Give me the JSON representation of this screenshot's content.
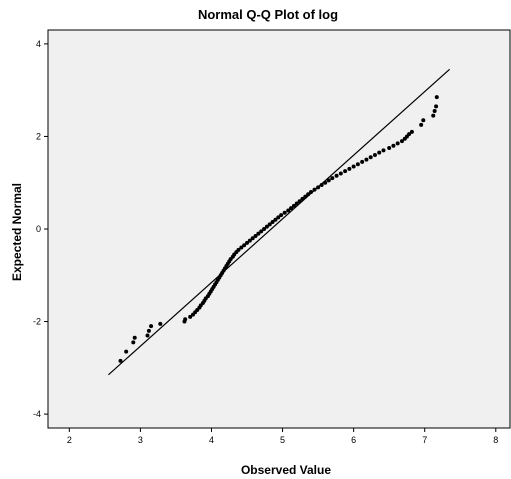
{
  "chart_data": {
    "type": "scatter",
    "title": "Normal Q-Q Plot of log",
    "xlabel": "Observed Value",
    "ylabel": "Expected Normal",
    "xlim": [
      1.7,
      8.2
    ],
    "ylim": [
      -4.3,
      4.3
    ],
    "xticks": [
      2,
      3,
      4,
      5,
      6,
      7,
      8
    ],
    "yticks": [
      -4,
      -2,
      0,
      2,
      4
    ],
    "xtick_labels": [
      "2",
      "3",
      "4",
      "5",
      "6",
      "7",
      "8"
    ],
    "ytick_labels": [
      "-4",
      "-2",
      "0",
      "2",
      "4"
    ],
    "grid": false,
    "legend": "none",
    "colors": {
      "plot_background": "#f0f0f0",
      "points": "#000000",
      "line": "#000000"
    },
    "reference_line": {
      "x": [
        2.55,
        7.35
      ],
      "y": [
        -3.15,
        3.45
      ]
    },
    "points": [
      [
        2.72,
        -2.85
      ],
      [
        2.8,
        -2.65
      ],
      [
        2.9,
        -2.45
      ],
      [
        2.92,
        -2.35
      ],
      [
        3.1,
        -2.3
      ],
      [
        3.12,
        -2.2
      ],
      [
        3.15,
        -2.1
      ],
      [
        3.28,
        -2.05
      ],
      [
        3.62,
        -2.0
      ],
      [
        3.63,
        -1.95
      ],
      [
        3.7,
        -1.9
      ],
      [
        3.74,
        -1.85
      ],
      [
        3.77,
        -1.8
      ],
      [
        3.8,
        -1.75
      ],
      [
        3.83,
        -1.7
      ],
      [
        3.85,
        -1.65
      ],
      [
        3.88,
        -1.6
      ],
      [
        3.9,
        -1.55
      ],
      [
        3.92,
        -1.5
      ],
      [
        3.95,
        -1.45
      ],
      [
        3.97,
        -1.4
      ],
      [
        3.99,
        -1.35
      ],
      [
        4.01,
        -1.3
      ],
      [
        4.03,
        -1.25
      ],
      [
        4.05,
        -1.2
      ],
      [
        4.07,
        -1.15
      ],
      [
        4.09,
        -1.1
      ],
      [
        4.11,
        -1.05
      ],
      [
        4.13,
        -1.0
      ],
      [
        4.15,
        -0.95
      ],
      [
        4.17,
        -0.9
      ],
      [
        4.19,
        -0.85
      ],
      [
        4.21,
        -0.8
      ],
      [
        4.23,
        -0.75
      ],
      [
        4.25,
        -0.7
      ],
      [
        4.27,
        -0.65
      ],
      [
        4.3,
        -0.6
      ],
      [
        4.32,
        -0.55
      ],
      [
        4.35,
        -0.5
      ],
      [
        4.38,
        -0.45
      ],
      [
        4.42,
        -0.4
      ],
      [
        4.46,
        -0.35
      ],
      [
        4.5,
        -0.3
      ],
      [
        4.54,
        -0.25
      ],
      [
        4.58,
        -0.2
      ],
      [
        4.62,
        -0.15
      ],
      [
        4.66,
        -0.1
      ],
      [
        4.7,
        -0.05
      ],
      [
        4.74,
        0.0
      ],
      [
        4.78,
        0.05
      ],
      [
        4.82,
        0.1
      ],
      [
        4.86,
        0.15
      ],
      [
        4.9,
        0.2
      ],
      [
        4.94,
        0.25
      ],
      [
        4.98,
        0.3
      ],
      [
        5.03,
        0.35
      ],
      [
        5.08,
        0.4
      ],
      [
        5.12,
        0.45
      ],
      [
        5.16,
        0.5
      ],
      [
        5.2,
        0.55
      ],
      [
        5.24,
        0.6
      ],
      [
        5.28,
        0.65
      ],
      [
        5.32,
        0.7
      ],
      [
        5.36,
        0.75
      ],
      [
        5.4,
        0.8
      ],
      [
        5.45,
        0.85
      ],
      [
        5.5,
        0.9
      ],
      [
        5.55,
        0.95
      ],
      [
        5.6,
        1.0
      ],
      [
        5.65,
        1.05
      ],
      [
        5.7,
        1.1
      ],
      [
        5.76,
        1.15
      ],
      [
        5.82,
        1.2
      ],
      [
        5.88,
        1.25
      ],
      [
        5.94,
        1.3
      ],
      [
        6.0,
        1.35
      ],
      [
        6.06,
        1.4
      ],
      [
        6.12,
        1.45
      ],
      [
        6.18,
        1.5
      ],
      [
        6.24,
        1.55
      ],
      [
        6.3,
        1.6
      ],
      [
        6.36,
        1.65
      ],
      [
        6.42,
        1.7
      ],
      [
        6.5,
        1.75
      ],
      [
        6.56,
        1.8
      ],
      [
        6.62,
        1.85
      ],
      [
        6.68,
        1.9
      ],
      [
        6.72,
        1.95
      ],
      [
        6.75,
        2.0
      ],
      [
        6.78,
        2.05
      ],
      [
        6.82,
        2.1
      ],
      [
        6.95,
        2.25
      ],
      [
        6.98,
        2.35
      ],
      [
        7.12,
        2.45
      ],
      [
        7.14,
        2.55
      ],
      [
        7.16,
        2.65
      ],
      [
        7.17,
        2.85
      ]
    ]
  }
}
